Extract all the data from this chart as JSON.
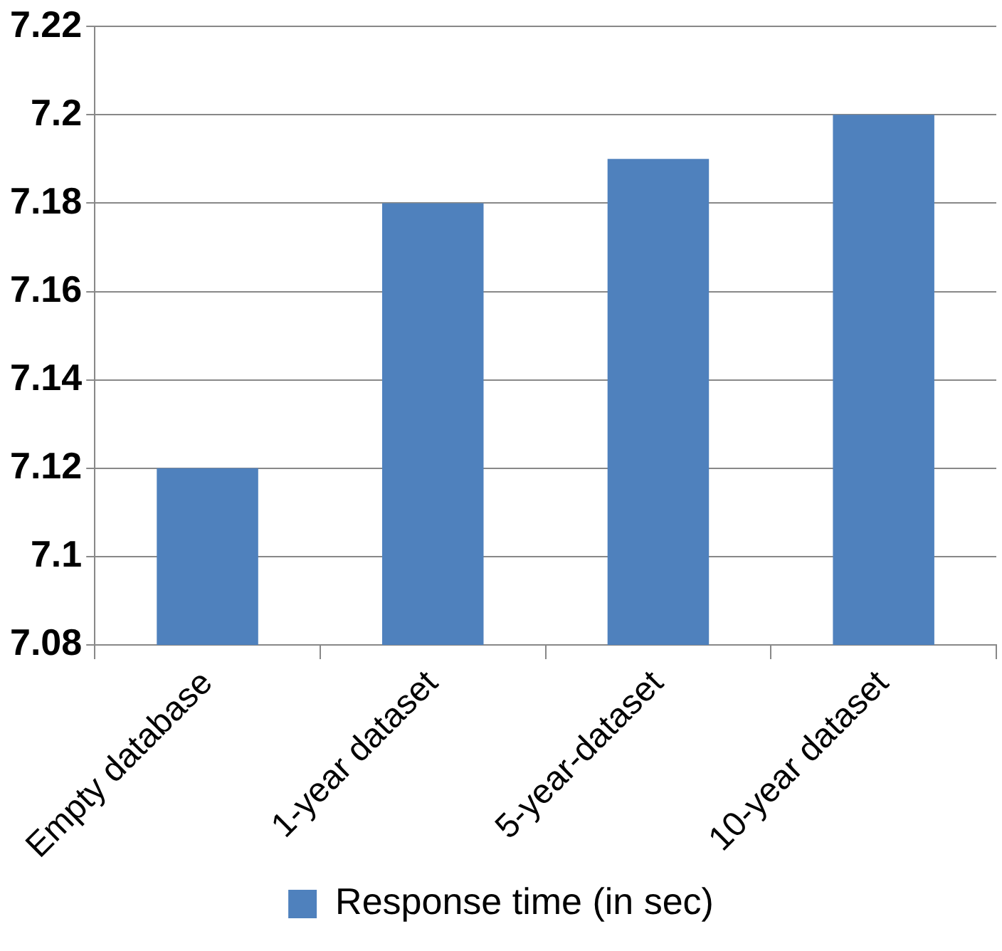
{
  "chart_data": {
    "type": "bar",
    "categories": [
      "Empty database",
      "1-year dataset",
      "5-year-dataset",
      "10-year dataset"
    ],
    "series": [
      {
        "name": "Response time (in sec)",
        "color": "#4f81bd",
        "values": [
          7.12,
          7.18,
          7.19,
          7.2
        ]
      }
    ],
    "ylim": [
      7.08,
      7.22
    ],
    "yticks": [
      7.08,
      7.1,
      7.12,
      7.14,
      7.16,
      7.18,
      7.2,
      7.22
    ],
    "grid": "y",
    "legend": "bottom"
  }
}
